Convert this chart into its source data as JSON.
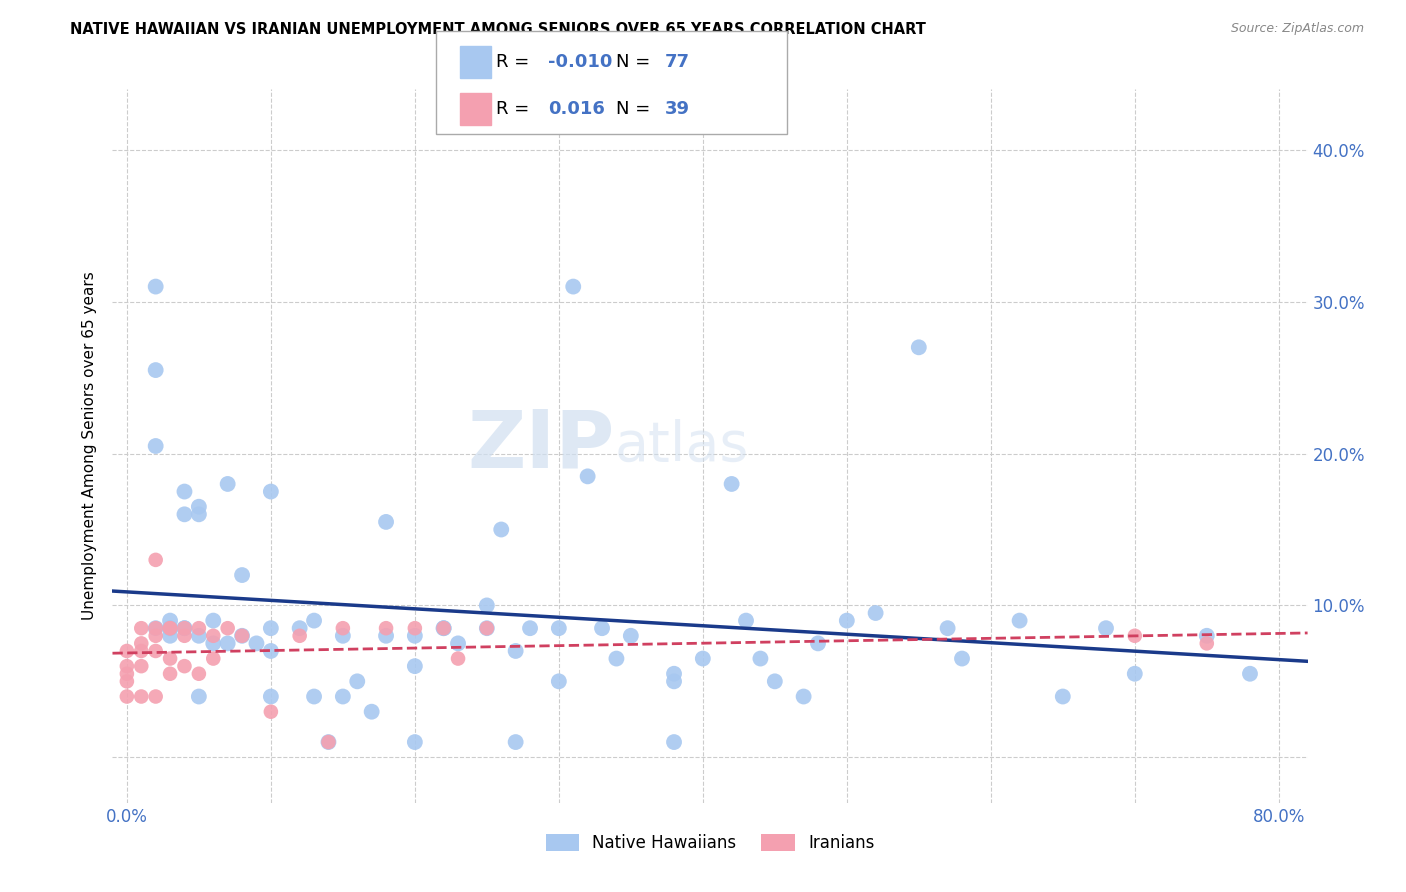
{
  "title": "NATIVE HAWAIIAN VS IRANIAN UNEMPLOYMENT AMONG SENIORS OVER 65 YEARS CORRELATION CHART",
  "source": "Source: ZipAtlas.com",
  "ylabel": "Unemployment Among Seniors over 65 years",
  "xlim": [
    -0.01,
    0.82
  ],
  "ylim": [
    -0.03,
    0.44
  ],
  "xticks": [
    0.0,
    0.1,
    0.2,
    0.3,
    0.4,
    0.5,
    0.6,
    0.7,
    0.8
  ],
  "yticks": [
    0.0,
    0.1,
    0.2,
    0.3,
    0.4
  ],
  "native_hawaiian_color": "#a8c8f0",
  "iranian_color": "#f4a0b0",
  "trend_nh_color": "#1a3a8a",
  "trend_iranian_color": "#d04060",
  "legend_label_nh": "Native Hawaiians",
  "legend_label_ir": "Iranians",
  "r_nh": -0.01,
  "n_nh": 77,
  "r_ir": 0.016,
  "n_ir": 39,
  "watermark_zip": "ZIP",
  "watermark_atlas": "atlas",
  "tick_color": "#4472c4",
  "grid_color": "#cccccc",
  "native_hawaiian_x": [
    0.02,
    0.02,
    0.02,
    0.03,
    0.03,
    0.03,
    0.04,
    0.04,
    0.04,
    0.05,
    0.05,
    0.05,
    0.05,
    0.06,
    0.06,
    0.07,
    0.07,
    0.08,
    0.08,
    0.09,
    0.1,
    0.1,
    0.1,
    0.1,
    0.12,
    0.13,
    0.13,
    0.14,
    0.15,
    0.15,
    0.16,
    0.17,
    0.18,
    0.18,
    0.2,
    0.2,
    0.2,
    0.22,
    0.22,
    0.23,
    0.25,
    0.25,
    0.26,
    0.27,
    0.27,
    0.28,
    0.3,
    0.3,
    0.31,
    0.32,
    0.33,
    0.34,
    0.35,
    0.38,
    0.38,
    0.38,
    0.4,
    0.42,
    0.43,
    0.44,
    0.45,
    0.47,
    0.48,
    0.5,
    0.52,
    0.55,
    0.57,
    0.58,
    0.62,
    0.65,
    0.68,
    0.7,
    0.75,
    0.78,
    0.02,
    0.03,
    0.04
  ],
  "native_hawaiian_y": [
    0.31,
    0.255,
    0.205,
    0.09,
    0.085,
    0.08,
    0.175,
    0.16,
    0.085,
    0.165,
    0.16,
    0.08,
    0.04,
    0.09,
    0.075,
    0.18,
    0.075,
    0.12,
    0.08,
    0.075,
    0.175,
    0.085,
    0.07,
    0.04,
    0.085,
    0.09,
    0.04,
    0.01,
    0.08,
    0.04,
    0.05,
    0.03,
    0.155,
    0.08,
    0.08,
    0.06,
    0.01,
    0.085,
    0.085,
    0.075,
    0.1,
    0.085,
    0.15,
    0.07,
    0.01,
    0.085,
    0.085,
    0.05,
    0.31,
    0.185,
    0.085,
    0.065,
    0.08,
    0.055,
    0.05,
    0.01,
    0.065,
    0.18,
    0.09,
    0.065,
    0.05,
    0.04,
    0.075,
    0.09,
    0.095,
    0.27,
    0.085,
    0.065,
    0.09,
    0.04,
    0.085,
    0.055,
    0.08,
    0.055,
    0.085,
    0.085,
    0.085
  ],
  "iranian_x": [
    0.0,
    0.0,
    0.0,
    0.0,
    0.0,
    0.01,
    0.01,
    0.01,
    0.01,
    0.01,
    0.02,
    0.02,
    0.02,
    0.02,
    0.02,
    0.03,
    0.03,
    0.03,
    0.03,
    0.04,
    0.04,
    0.04,
    0.05,
    0.05,
    0.06,
    0.06,
    0.07,
    0.08,
    0.1,
    0.12,
    0.14,
    0.15,
    0.18,
    0.2,
    0.22,
    0.23,
    0.25,
    0.7,
    0.75
  ],
  "iranian_y": [
    0.07,
    0.06,
    0.055,
    0.05,
    0.04,
    0.085,
    0.075,
    0.07,
    0.06,
    0.04,
    0.13,
    0.085,
    0.08,
    0.07,
    0.04,
    0.085,
    0.085,
    0.065,
    0.055,
    0.085,
    0.08,
    0.06,
    0.085,
    0.055,
    0.08,
    0.065,
    0.085,
    0.08,
    0.03,
    0.08,
    0.01,
    0.085,
    0.085,
    0.085,
    0.085,
    0.065,
    0.085,
    0.08,
    0.075
  ]
}
